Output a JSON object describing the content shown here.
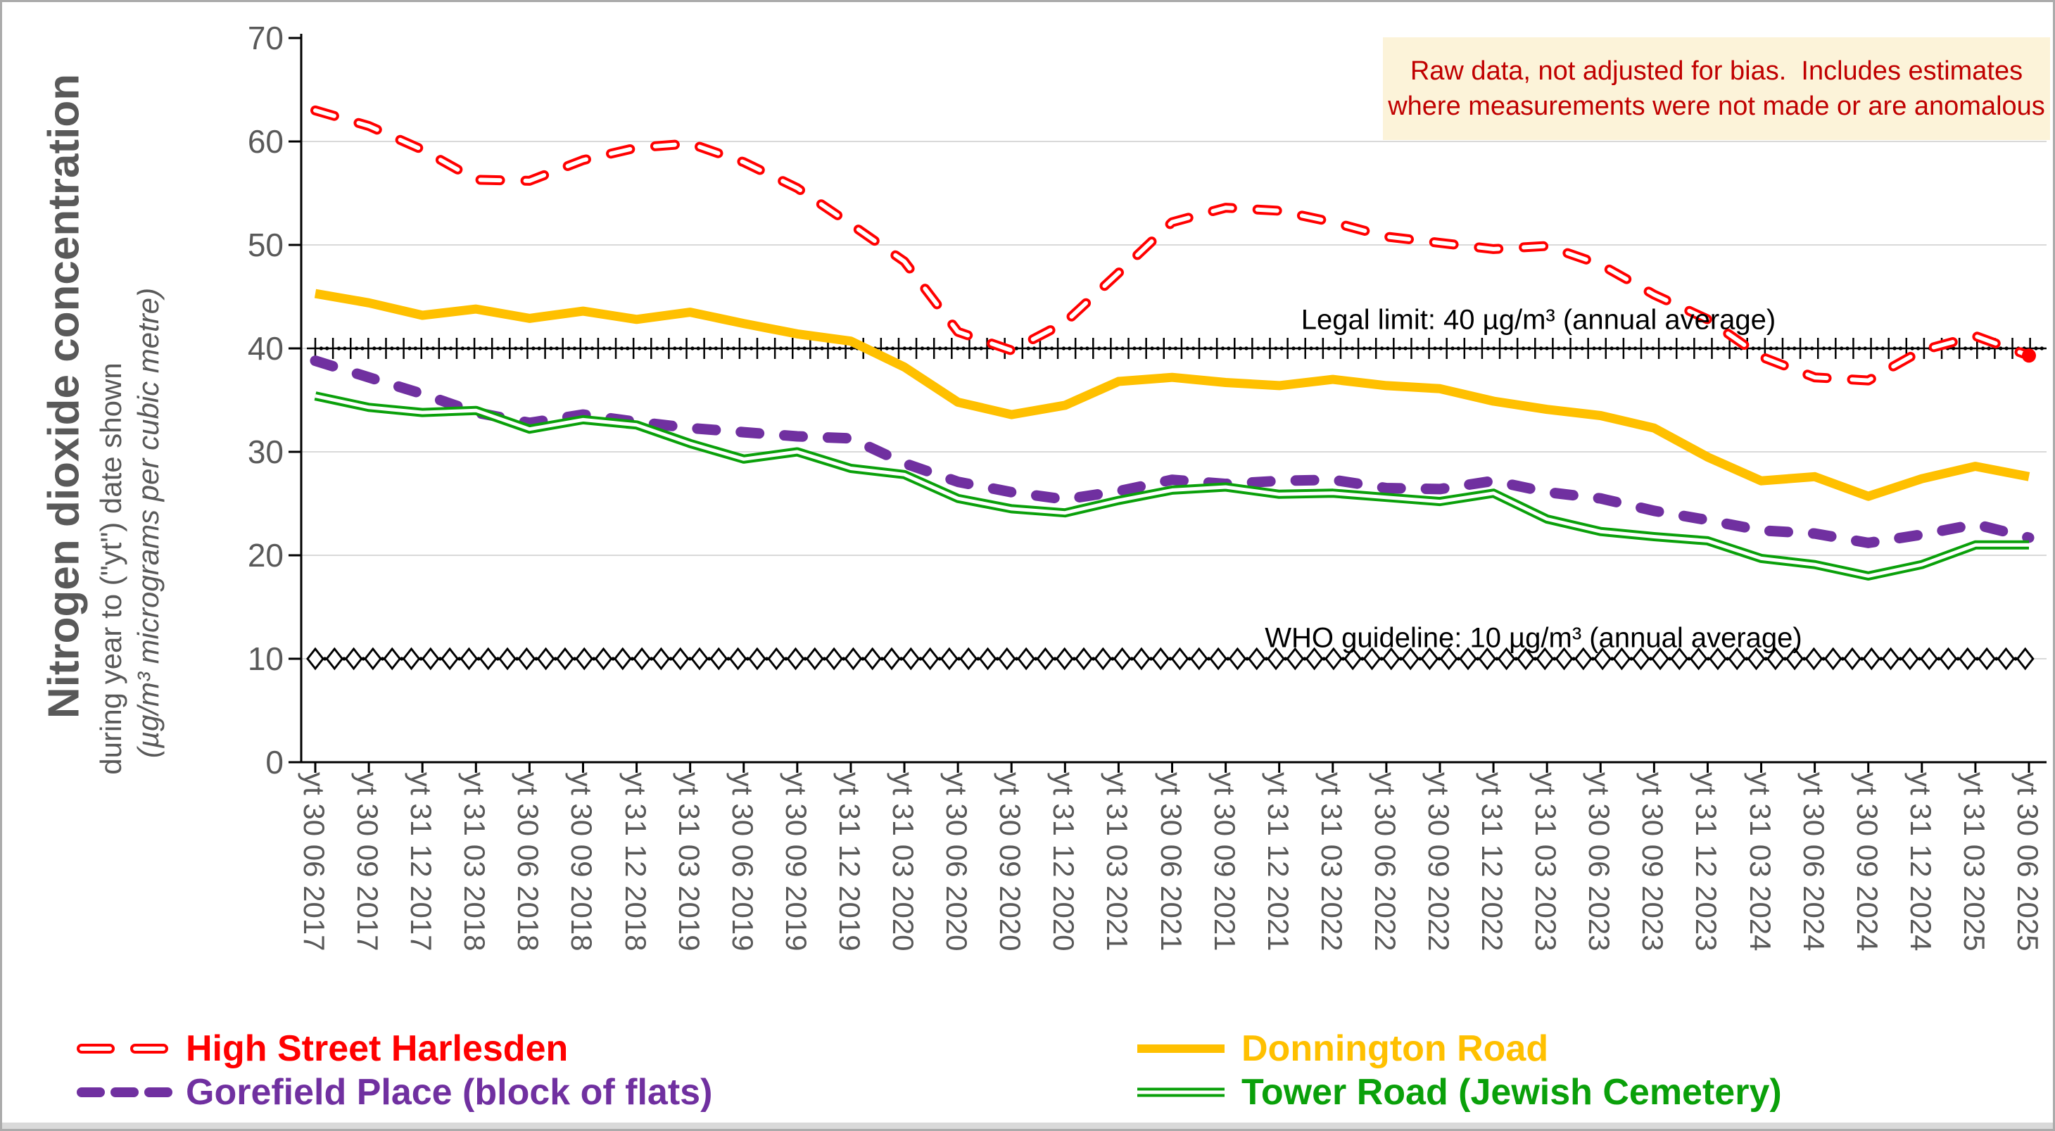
{
  "chart_data": {
    "type": "line",
    "title": "Nitrogen dioxide concentration",
    "subtitle": "during year to (\"yt\") date shown",
    "unit_label": "(µg/m³ micrograms per cubic metre)",
    "ylim": [
      0,
      70
    ],
    "y_ticks": [
      0,
      10,
      20,
      30,
      40,
      50,
      60,
      70
    ],
    "grid": true,
    "legend_position": "bottom",
    "categories": [
      "yt 30 06 2017",
      "yt 30 09 2017",
      "yt 31 12 2017",
      "yt 31 03 2018",
      "yt 30 06 2018",
      "yt 30 09 2018",
      "yt 31 12 2018",
      "yt 31 03 2019",
      "yt 30 06 2019",
      "yt 30 09 2019",
      "yt 31 12 2019",
      "yt 31 03 2020",
      "yt 30 06 2020",
      "yt 30 09 2020",
      "yt 31 12 2020",
      "yt 31 03 2021",
      "yt 30 06 2021",
      "yt 30 09 2021",
      "yt 31 12 2021",
      "yt 31 03 2022",
      "yt 30 06 2022",
      "yt 30 09 2022",
      "yt 31 12 2022",
      "yt 31 03 2023",
      "yt 30 06 2023",
      "yt 30 09 2023",
      "yt 31 12 2023",
      "yt 31 03 2024",
      "yt 30 06 2024",
      "yt 30 09 2024",
      "yt 31 12 2024",
      "yt 31 03 2025",
      "yt 30 06 2025"
    ],
    "series": [
      {
        "name": "High Street Harlesden",
        "color": "#ff0000",
        "style": "hollow-dash",
        "values": [
          63.0,
          61.5,
          59.2,
          56.3,
          56.2,
          58.2,
          59.4,
          59.8,
          58.0,
          55.5,
          52.0,
          48.4,
          41.6,
          39.8,
          42.5,
          47.3,
          52.2,
          53.6,
          53.3,
          52.2,
          50.8,
          50.2,
          49.6,
          49.9,
          48.1,
          45.2,
          42.8,
          39.2,
          37.2,
          36.9,
          39.8,
          41.2,
          39.3
        ]
      },
      {
        "name": "Donnington Road",
        "color": "#ffc000",
        "style": "solid",
        "values": [
          45.3,
          44.4,
          43.2,
          43.8,
          42.9,
          43.6,
          42.8,
          43.5,
          42.4,
          41.4,
          40.7,
          38.2,
          34.8,
          33.6,
          34.5,
          36.8,
          37.2,
          36.7,
          36.4,
          37.0,
          36.4,
          36.1,
          34.9,
          34.1,
          33.5,
          32.3,
          29.5,
          27.2,
          27.6,
          25.7,
          27.4,
          28.6,
          27.6
        ]
      },
      {
        "name": "Gorefield Place (block of flats)",
        "color": "#7030a0",
        "style": "dash",
        "values": [
          38.8,
          37.2,
          35.6,
          33.8,
          32.8,
          33.6,
          32.9,
          32.3,
          31.9,
          31.5,
          31.3,
          28.9,
          27.1,
          26.1,
          25.4,
          26.2,
          27.3,
          26.9,
          27.2,
          27.3,
          26.5,
          26.4,
          27.2,
          26.1,
          25.5,
          24.3,
          23.4,
          22.4,
          22.1,
          21.2,
          22.0,
          23.0,
          21.7
        ]
      },
      {
        "name": "Tower Road (Jewish Cemetery)",
        "color": "#0aa00a",
        "style": "hollow-solid",
        "values": [
          35.4,
          34.3,
          33.8,
          34.0,
          32.2,
          33.1,
          32.6,
          30.8,
          29.3,
          30.0,
          28.4,
          27.8,
          25.5,
          24.5,
          24.1,
          25.3,
          26.3,
          26.6,
          25.9,
          26.0,
          25.6,
          25.2,
          26.0,
          23.5,
          22.3,
          21.8,
          21.4,
          19.7,
          19.1,
          18.0,
          19.1,
          21.0,
          21.0
        ]
      }
    ],
    "reference_lines": [
      {
        "label": "Legal limit: 40 µg/m³ (annual average)",
        "value": 40,
        "style": "plus-dot",
        "color": "#000000"
      },
      {
        "label": "WHO guideline: 10 µg/m³ (annual average)",
        "value": 10,
        "style": "diamond",
        "color": "#000000"
      }
    ]
  },
  "note_box": {
    "bg": "#fcf3d9",
    "color": "#c00000",
    "lines": [
      "Raw data, not adjusted for bias.  Includes estimates",
      "where measurements were not made or are anomalous"
    ]
  },
  "colors": {
    "axis": "#000000",
    "gridline": "#d9d9d9",
    "text_gray": "#595959",
    "frame_border": "#ababab"
  }
}
